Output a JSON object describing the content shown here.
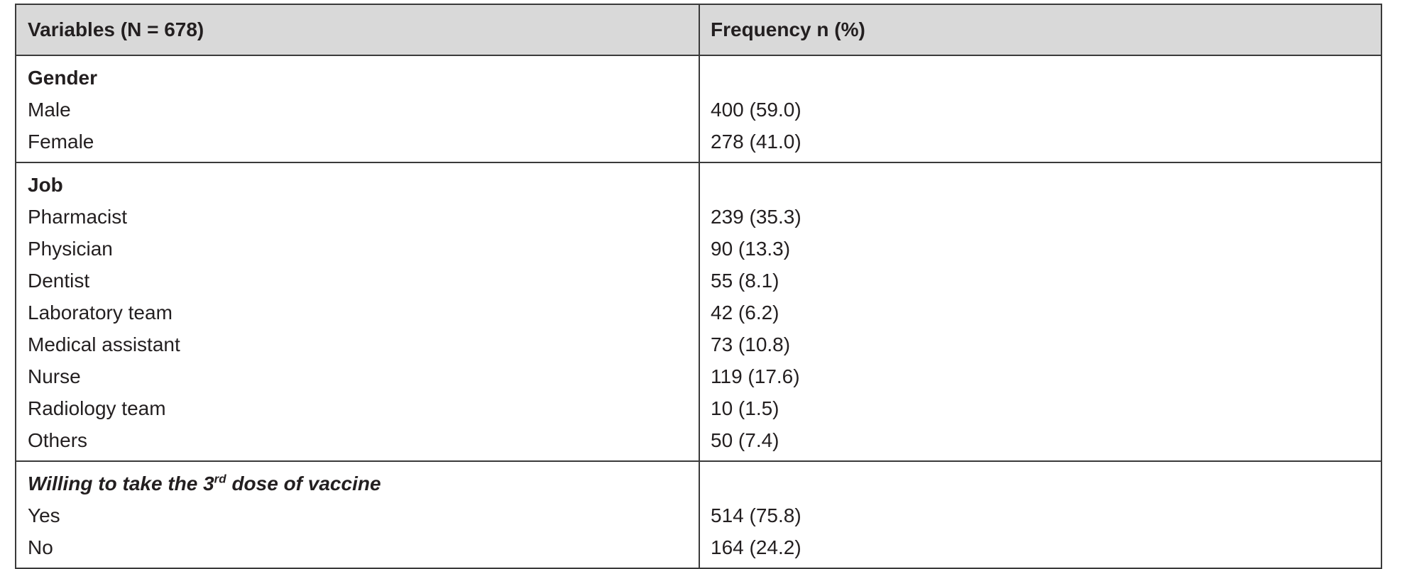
{
  "table": {
    "header": [
      "Variables (N = 678)",
      "Frequency n (%)"
    ],
    "sections": [
      {
        "title": {
          "text": "Gender"
        },
        "rows": [
          [
            "Male",
            "400 (59.0)"
          ],
          [
            "Female",
            "278 (41.0)"
          ]
        ]
      },
      {
        "title": {
          "text": "Job"
        },
        "rows": [
          [
            "Pharmacist",
            "239 (35.3)"
          ],
          [
            "Physician",
            "90 (13.3)"
          ],
          [
            "Dentist",
            "55 (8.1)"
          ],
          [
            "Laboratory team",
            "42 (6.2)"
          ],
          [
            "Medical assistant",
            "73 (10.8)"
          ],
          [
            "Nurse",
            "119 (17.6)"
          ],
          [
            "Radiology team",
            "10 (1.5)"
          ],
          [
            "Others",
            "50 (7.4)"
          ]
        ]
      },
      {
        "title": {
          "text": "Willing to take the 3",
          "superscript": "rd",
          "text_after": " dose of vaccine"
        },
        "rows": [
          [
            "Yes",
            "514 (75.8)"
          ],
          [
            "No",
            "164 (24.2)"
          ]
        ]
      }
    ]
  }
}
